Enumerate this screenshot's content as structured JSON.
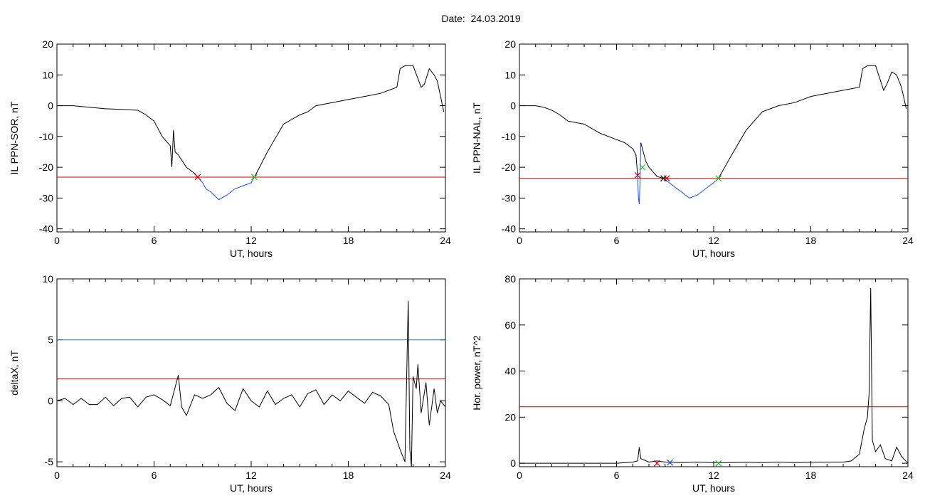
{
  "header": {
    "date_label": "Date:",
    "date_value": "24.03.2019"
  },
  "chart_data": [
    {
      "type": "line",
      "id": "p1",
      "xlabel": "UT, hours",
      "ylabel": "IL PPN-SOR, nT",
      "xlim": [
        0,
        24
      ],
      "ylim": [
        -41,
        20
      ],
      "xticks": [
        0,
        6,
        12,
        18,
        24
      ],
      "yticks": [
        20,
        10,
        0,
        -10,
        -20,
        -30,
        -40
      ],
      "hlines": [
        {
          "y": -23.2,
          "color": "#cc0000"
        }
      ],
      "series": [
        {
          "color": "#000000",
          "points": [
            [
              0,
              0
            ],
            [
              1,
              0
            ],
            [
              2,
              -0.5
            ],
            [
              3,
              -1
            ],
            [
              4,
              -1.2
            ],
            [
              5,
              -1.5
            ],
            [
              5.5,
              -3
            ],
            [
              6,
              -5
            ],
            [
              6.5,
              -10
            ],
            [
              7,
              -13
            ],
            [
              7.1,
              -20
            ],
            [
              7.2,
              -8
            ],
            [
              7.3,
              -15
            ],
            [
              7.5,
              -16
            ],
            [
              8,
              -20
            ],
            [
              8.5,
              -22
            ],
            [
              8.7,
              -23.2
            ]
          ]
        },
        {
          "color": "#1f4fd0",
          "points": [
            [
              8.7,
              -23.2
            ],
            [
              9,
              -25
            ],
            [
              9.2,
              -27
            ],
            [
              9.5,
              -28
            ],
            [
              10,
              -30.5
            ],
            [
              10.5,
              -29
            ],
            [
              11,
              -27
            ],
            [
              11.5,
              -26
            ],
            [
              12,
              -25
            ],
            [
              12.2,
              -23.2
            ]
          ]
        },
        {
          "color": "#000000",
          "points": [
            [
              12.2,
              -23.2
            ],
            [
              13,
              -15
            ],
            [
              14,
              -6
            ],
            [
              15,
              -3
            ],
            [
              15.5,
              -2
            ],
            [
              16,
              0
            ],
            [
              17,
              1
            ],
            [
              18,
              2
            ],
            [
              19,
              3
            ],
            [
              20,
              4
            ],
            [
              21,
              6
            ],
            [
              21.2,
              12
            ],
            [
              21.5,
              13
            ],
            [
              22,
              13
            ],
            [
              22.5,
              6
            ],
            [
              22.7,
              7
            ],
            [
              23,
              12
            ],
            [
              23.3,
              10
            ],
            [
              23.5,
              8
            ],
            [
              23.7,
              3
            ],
            [
              23.9,
              -2
            ]
          ]
        }
      ],
      "markers": [
        {
          "x": 8.7,
          "y": -23.2,
          "color": "#cc0000"
        },
        {
          "x": 12.2,
          "y": -23.2,
          "color": "#22bb22"
        }
      ]
    },
    {
      "type": "line",
      "id": "p2",
      "xlabel": "UT, hours",
      "ylabel": "IL PPN-NAL, nT",
      "xlim": [
        0,
        24
      ],
      "ylim": [
        -41,
        20
      ],
      "xticks": [
        0,
        6,
        12,
        18,
        24
      ],
      "yticks": [
        20,
        10,
        0,
        -10,
        -20,
        -30,
        -40
      ],
      "hlines": [
        {
          "y": -23.6,
          "color": "#cc0000"
        }
      ],
      "series": [
        {
          "color": "#000000",
          "points": [
            [
              0,
              0
            ],
            [
              1,
              0
            ],
            [
              1.5,
              -0.5
            ],
            [
              2,
              -1.5
            ],
            [
              2.5,
              -3
            ],
            [
              3,
              -5
            ],
            [
              4,
              -6
            ],
            [
              5,
              -9
            ],
            [
              6,
              -11
            ],
            [
              6.5,
              -12
            ],
            [
              7,
              -14
            ],
            [
              7.2,
              -16
            ],
            [
              7.3,
              -22.6
            ]
          ]
        },
        {
          "color": "#1f4fd0",
          "points": [
            [
              7.3,
              -22.6
            ],
            [
              7.35,
              -30
            ],
            [
              7.4,
              -32
            ],
            [
              7.45,
              -25
            ],
            [
              7.5,
              -12
            ]
          ]
        },
        {
          "color": "#000000",
          "points": [
            [
              7.5,
              -12
            ],
            [
              7.8,
              -18
            ],
            [
              8,
              -20
            ],
            [
              8.5,
              -23
            ],
            [
              8.9,
              -23.6
            ]
          ]
        },
        {
          "color": "#1f4fd0",
          "points": [
            [
              8.9,
              -23.6
            ],
            [
              9.5,
              -26
            ],
            [
              10,
              -28
            ],
            [
              10.5,
              -30
            ],
            [
              11,
              -29
            ],
            [
              11.5,
              -27
            ],
            [
              12,
              -25
            ],
            [
              12.3,
              -23.6
            ]
          ]
        },
        {
          "color": "#000000",
          "points": [
            [
              12.3,
              -23.6
            ],
            [
              13,
              -17
            ],
            [
              14,
              -8
            ],
            [
              15,
              -2
            ],
            [
              15.5,
              -1
            ],
            [
              16,
              0
            ],
            [
              17,
              1
            ],
            [
              18,
              3
            ],
            [
              19,
              4
            ],
            [
              20,
              5
            ],
            [
              21,
              6
            ],
            [
              21.2,
              12
            ],
            [
              21.5,
              13
            ],
            [
              22,
              13
            ],
            [
              22.5,
              5
            ],
            [
              22.7,
              7
            ],
            [
              23,
              11
            ],
            [
              23.3,
              10
            ],
            [
              23.6,
              6
            ],
            [
              23.9,
              -1
            ]
          ]
        }
      ],
      "markers": [
        {
          "x": 7.3,
          "y": -22.6,
          "color": "#cc0000"
        },
        {
          "x": 7.6,
          "y": -20,
          "color": "#22bb22"
        },
        {
          "x": 8.9,
          "y": -23.6,
          "color": "#000000"
        },
        {
          "x": 9.1,
          "y": -23.6,
          "color": "#cc0000"
        },
        {
          "x": 12.3,
          "y": -23.6,
          "color": "#22bb22"
        }
      ]
    },
    {
      "type": "line",
      "id": "p3",
      "xlabel": "UT, hours",
      "ylabel": "deltaX, nT",
      "xlim": [
        0,
        24
      ],
      "ylim": [
        -5.4,
        10
      ],
      "xticks": [
        0,
        6,
        12,
        18,
        24
      ],
      "yticks": [
        10,
        5,
        0,
        -5
      ],
      "hlines": [
        {
          "y": 5,
          "color": "#1f7fa0"
        },
        {
          "y": 1.8,
          "color": "#cc0000"
        }
      ],
      "series": [
        {
          "color": "#000000",
          "points": [
            [
              0,
              0
            ],
            [
              0.5,
              0.2
            ],
            [
              1,
              -0.3
            ],
            [
              1.5,
              0.2
            ],
            [
              2,
              -0.3
            ],
            [
              2.5,
              -0.3
            ],
            [
              3,
              0.3
            ],
            [
              3.5,
              -0.4
            ],
            [
              4,
              0.2
            ],
            [
              4.5,
              0.3
            ],
            [
              5,
              -0.5
            ],
            [
              5.5,
              0.3
            ],
            [
              6,
              0.5
            ],
            [
              6.5,
              0.1
            ],
            [
              7,
              -0.4
            ],
            [
              7.5,
              2.1
            ],
            [
              7.7,
              -0.5
            ],
            [
              8,
              -1.2
            ],
            [
              8.5,
              0.5
            ],
            [
              9,
              0.2
            ],
            [
              9.5,
              0.5
            ],
            [
              10,
              1.1
            ],
            [
              10.5,
              -0.2
            ],
            [
              11,
              -0.8
            ],
            [
              11.5,
              1
            ],
            [
              12,
              0
            ],
            [
              12.5,
              -0.5
            ],
            [
              13,
              0.8
            ],
            [
              13.5,
              -0.3
            ],
            [
              14,
              0.2
            ],
            [
              14.5,
              0.5
            ],
            [
              15,
              -0.5
            ],
            [
              15.5,
              0.6
            ],
            [
              16,
              0.9
            ],
            [
              16.5,
              -0.3
            ],
            [
              17,
              0.5
            ],
            [
              17.5,
              0
            ],
            [
              18,
              0.8
            ],
            [
              18.5,
              0.3
            ],
            [
              19,
              -0.2
            ],
            [
              19.5,
              0.7
            ],
            [
              20,
              0.4
            ],
            [
              20.5,
              -0.3
            ],
            [
              20.8,
              -2.5
            ],
            [
              21.2,
              -4
            ],
            [
              21.5,
              -5
            ],
            [
              21.7,
              8.2
            ],
            [
              21.8,
              -4
            ],
            [
              21.9,
              -5.4
            ],
            [
              22,
              2
            ],
            [
              22.2,
              1
            ],
            [
              22.3,
              3
            ],
            [
              22.5,
              -1
            ],
            [
              22.8,
              1.5
            ],
            [
              23,
              -2
            ],
            [
              23.3,
              1
            ],
            [
              23.5,
              -1
            ],
            [
              23.7,
              0
            ],
            [
              24,
              -0.5
            ]
          ]
        }
      ],
      "markers": []
    },
    {
      "type": "line",
      "id": "p4",
      "xlabel": "UT, hours",
      "ylabel": "Hor. power, nT^2",
      "xlim": [
        0,
        24
      ],
      "ylim": [
        -1.5,
        80
      ],
      "xticks": [
        0,
        6,
        12,
        18,
        24
      ],
      "yticks": [
        80,
        60,
        40,
        20,
        0
      ],
      "hlines": [
        {
          "y": 24.5,
          "color": "#cc0000"
        }
      ],
      "series": [
        {
          "color": "#000000",
          "points": [
            [
              0,
              0
            ],
            [
              6,
              0
            ],
            [
              7,
              0.5
            ],
            [
              7.3,
              1
            ],
            [
              7.4,
              7
            ],
            [
              7.5,
              2
            ],
            [
              8,
              0.5
            ],
            [
              8.5,
              1
            ],
            [
              9,
              0.5
            ],
            [
              10,
              0.3
            ],
            [
              11,
              0.5
            ],
            [
              12,
              0.3
            ],
            [
              13,
              0.3
            ],
            [
              14,
              0.4
            ],
            [
              15,
              0.3
            ],
            [
              16,
              0.5
            ],
            [
              17,
              0.3
            ],
            [
              18,
              0.4
            ],
            [
              19,
              0.5
            ],
            [
              20,
              0.5
            ],
            [
              20.5,
              1
            ],
            [
              21,
              4
            ],
            [
              21.3,
              15
            ],
            [
              21.5,
              20
            ],
            [
              21.6,
              30
            ],
            [
              21.7,
              76
            ],
            [
              21.8,
              10
            ],
            [
              22,
              5
            ],
            [
              22.3,
              8
            ],
            [
              22.6,
              2
            ],
            [
              23,
              1
            ],
            [
              23.3,
              7
            ],
            [
              23.6,
              3
            ],
            [
              24,
              0
            ]
          ]
        }
      ],
      "markers": [
        {
          "x": 8.5,
          "y": 0,
          "color": "#cc0000"
        },
        {
          "x": 9.3,
          "y": 0.3,
          "color": "#1f4fd0"
        },
        {
          "x": 12.3,
          "y": 0,
          "color": "#22bb22"
        }
      ]
    }
  ]
}
